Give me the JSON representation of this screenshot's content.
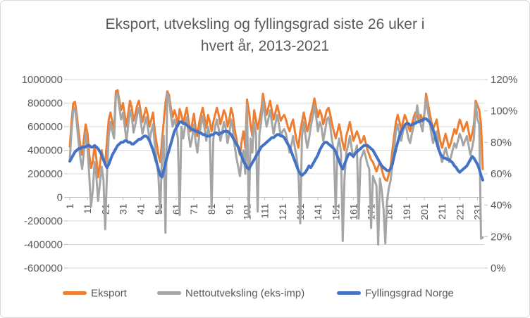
{
  "colors": {
    "grid": "#D9D9D9",
    "axis": "#BFBFBF",
    "text": "#595959",
    "background": "#FFFFFF",
    "border": "#D9D9D9"
  },
  "chart_data": {
    "type": "line",
    "title": "Eksport, utveksling og fyllingsgrad siste 26 uker i hvert år, 2013-2021",
    "title_lines": [
      "Eksport, utveksling og fyllingsgrad siste 26 uker i",
      "hvert år, 2013-2021"
    ],
    "x_range": [
      1,
      234
    ],
    "x_ticks": [
      1,
      11,
      21,
      31,
      41,
      51,
      61,
      71,
      81,
      91,
      101,
      111,
      121,
      131,
      141,
      151,
      161,
      171,
      181,
      191,
      201,
      211,
      221,
      231
    ],
    "left_axis": {
      "min": -600000,
      "max": 1000000,
      "step": 200000,
      "tick_labels": [
        "1000000",
        "800000",
        "600000",
        "400000",
        "200000",
        "0",
        "-200000",
        "-400000",
        "-600000"
      ]
    },
    "right_axis": {
      "min": 0,
      "max": 120,
      "step": 20,
      "unit": "%",
      "tick_labels": [
        "120%",
        "100%",
        "80%",
        "60%",
        "40%",
        "20%",
        "0%"
      ]
    },
    "grid": true,
    "legend_position": "bottom",
    "series": [
      {
        "name": "Eksport",
        "axis": "left",
        "color": "#ED7D31",
        "width": 3,
        "values": [
          430000,
          640000,
          800000,
          810000,
          690000,
          550000,
          430000,
          360000,
          500000,
          620000,
          540000,
          360000,
          250000,
          310000,
          440000,
          330000,
          170000,
          280000,
          400000,
          310000,
          290000,
          480000,
          660000,
          720000,
          640000,
          580000,
          900000,
          910000,
          820000,
          740000,
          800000,
          700000,
          600000,
          720000,
          820000,
          760000,
          650000,
          710000,
          780000,
          820000,
          730000,
          640000,
          700000,
          760000,
          700000,
          600000,
          660000,
          720000,
          560000,
          460000,
          360000,
          300000,
          480000,
          640000,
          800000,
          900000,
          870000,
          760000,
          680000,
          740000,
          690000,
          610000,
          750000,
          700000,
          620000,
          700000,
          760000,
          650000,
          560000,
          620000,
          710000,
          590000,
          520000,
          630000,
          700000,
          760000,
          680000,
          590000,
          700000,
          640000,
          560000,
          640000,
          700000,
          760000,
          700000,
          620000,
          680000,
          740000,
          700000,
          600000,
          660000,
          760000,
          700000,
          580000,
          500000,
          420000,
          360000,
          480000,
          560000,
          420000,
          830000,
          740000,
          620000,
          520000,
          740000,
          660000,
          580000,
          660000,
          740000,
          880000,
          780000,
          700000,
          760000,
          820000,
          740000,
          660000,
          720000,
          780000,
          720000,
          650000,
          680000,
          700000,
          660000,
          600000,
          560000,
          620000,
          660000,
          560000,
          480000,
          420000,
          560000,
          640000,
          720000,
          640000,
          560000,
          620000,
          700000,
          760000,
          840000,
          760000,
          680000,
          740000,
          700000,
          620000,
          680000,
          740000,
          760000,
          700000,
          620000,
          560000,
          500000,
          560000,
          620000,
          540000,
          460000,
          400000,
          520000,
          580000,
          640000,
          560000,
          480000,
          520000,
          560000,
          520000,
          460000,
          480000,
          520000,
          460000,
          400000,
          360000,
          320000,
          300000,
          260000,
          220000,
          260000,
          300000,
          240000,
          180000,
          150000,
          140000,
          200000,
          260000,
          400000,
          520000,
          640000,
          700000,
          640000,
          580000,
          640000,
          700000,
          660000,
          600000,
          560000,
          620000,
          680000,
          720000,
          700000,
          640000,
          700000,
          640000,
          700000,
          880000,
          800000,
          720000,
          640000,
          580000,
          620000,
          660000,
          560000,
          480000,
          420000,
          480000,
          540000,
          480000,
          420000,
          460000,
          520000,
          580000,
          540000,
          600000,
          660000,
          620000,
          560000,
          600000,
          640000,
          560000,
          480000,
          540000,
          620000,
          820000,
          780000,
          740000,
          620000,
          240000
        ]
      },
      {
        "name": "Nettoutveksling (eks-imp)",
        "axis": "left",
        "color": "#A5A5A5",
        "width": 3,
        "values": [
          320000,
          560000,
          740000,
          760000,
          620000,
          460000,
          330000,
          240000,
          390000,
          540000,
          420000,
          180000,
          -80000,
          60000,
          300000,
          180000,
          -30000,
          120000,
          260000,
          150000,
          -270000,
          200000,
          520000,
          640000,
          560000,
          500000,
          860000,
          880000,
          760000,
          660000,
          720000,
          600000,
          480000,
          620000,
          740000,
          680000,
          550000,
          620000,
          700000,
          760000,
          650000,
          540000,
          600000,
          680000,
          600000,
          480000,
          560000,
          620000,
          440000,
          320000,
          180000,
          -130000,
          340000,
          520000,
          -300000,
          880000,
          840000,
          700000,
          600000,
          660000,
          600000,
          500000,
          -150000,
          600000,
          500000,
          600000,
          680000,
          540000,
          430000,
          500000,
          620000,
          470000,
          380000,
          520000,
          610000,
          690000,
          590000,
          480000,
          600000,
          520000,
          -90000,
          500000,
          600000,
          660000,
          580000,
          480000,
          560000,
          640000,
          580000,
          460000,
          540000,
          660000,
          580000,
          440000,
          340000,
          260000,
          180000,
          320000,
          400000,
          200000,
          780000,
          -160000,
          500000,
          380000,
          640000,
          540000,
          -120000,
          540000,
          640000,
          820000,
          700000,
          600000,
          660000,
          740000,
          640000,
          540000,
          620000,
          700000,
          620000,
          520000,
          560000,
          580000,
          540000,
          460000,
          380000,
          440000,
          520000,
          420000,
          340000,
          220000,
          -220000,
          520000,
          640000,
          520000,
          420000,
          500000,
          600000,
          680000,
          780000,
          680000,
          560000,
          640000,
          600000,
          480000,
          560000,
          660000,
          680000,
          600000,
          480000,
          400000,
          -120000,
          420000,
          500000,
          380000,
          -370000,
          160000,
          380000,
          440000,
          520000,
          420000,
          340000,
          380000,
          440000,
          -180000,
          320000,
          360000,
          400000,
          340000,
          280000,
          240000,
          -260000,
          180000,
          140000,
          100000,
          -400000,
          160000,
          60000,
          -100000,
          -390000,
          -30000,
          80000,
          140000,
          280000,
          420000,
          560000,
          620000,
          540000,
          480000,
          560000,
          620000,
          580000,
          500000,
          460000,
          540000,
          600000,
          660000,
          780000,
          680000,
          620000,
          560000,
          700000,
          840000,
          740000,
          640000,
          540000,
          460000,
          520000,
          560000,
          440000,
          360000,
          300000,
          360000,
          420000,
          360000,
          300000,
          340000,
          400000,
          460000,
          420000,
          480000,
          540000,
          500000,
          440000,
          480000,
          520000,
          440000,
          360000,
          420000,
          500000,
          800000,
          660000,
          620000,
          -350000,
          -340000
        ]
      },
      {
        "name": "Fyllingsgrad Norge",
        "axis": "right",
        "color": "#4472C4",
        "width": 4,
        "unit": "%",
        "values": [
          68,
          70,
          72,
          74,
          75,
          76,
          76,
          77,
          77,
          77,
          78,
          78,
          77,
          77,
          78,
          77,
          76,
          74,
          72,
          69,
          66,
          64,
          66,
          69,
          72,
          74,
          76,
          78,
          79,
          80,
          80,
          81,
          81,
          80,
          80,
          79,
          79,
          80,
          81,
          82,
          82,
          83,
          84,
          84,
          83,
          81,
          78,
          75,
          71,
          67,
          63,
          59,
          58,
          62,
          67,
          71,
          75,
          79,
          83,
          87,
          89,
          91,
          93,
          93,
          92,
          92,
          91,
          90,
          89,
          88,
          88,
          87,
          87,
          86,
          86,
          85,
          85,
          84,
          84,
          84,
          85,
          85,
          86,
          86,
          85,
          86,
          86,
          87,
          87,
          87,
          86,
          85,
          83,
          81,
          79,
          77,
          74,
          71,
          68,
          66,
          64,
          63,
          65,
          67,
          69,
          71,
          73,
          75,
          77,
          78,
          79,
          80,
          81,
          82,
          83,
          83,
          84,
          85,
          85,
          84,
          84,
          83,
          81,
          79,
          77,
          74,
          71,
          68,
          65,
          62,
          60,
          59,
          60,
          61,
          63,
          65,
          64,
          66,
          68,
          70,
          72,
          75,
          77,
          79,
          80,
          80,
          79,
          78,
          77,
          76,
          74,
          71,
          68,
          65,
          63,
          66,
          69,
          72,
          73,
          72,
          71,
          73,
          74,
          75,
          76,
          77,
          78,
          78,
          78,
          77,
          76,
          75,
          73,
          71,
          69,
          67,
          65,
          64,
          63,
          62,
          62,
          63,
          66,
          71,
          76,
          80,
          84,
          87,
          89,
          91,
          92,
          92,
          91,
          91,
          92,
          92,
          93,
          93,
          94,
          94,
          95,
          95,
          94,
          93,
          91,
          88,
          84,
          80,
          76,
          73,
          71,
          70,
          70,
          69,
          69,
          68,
          67,
          65,
          64,
          62,
          61,
          62,
          63,
          64,
          65,
          67,
          69,
          71,
          70,
          68,
          66,
          63,
          59,
          56
        ]
      }
    ]
  }
}
